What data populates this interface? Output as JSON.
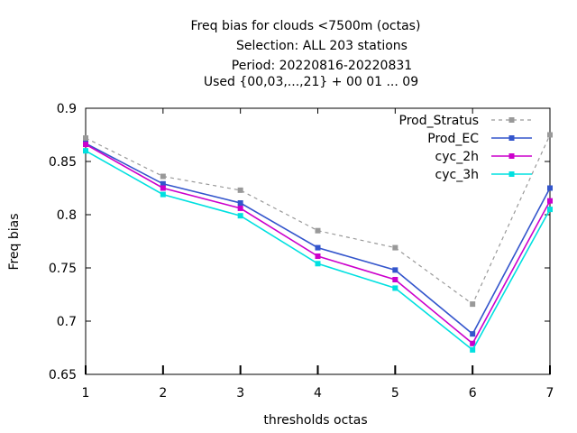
{
  "chart_data": {
    "type": "line",
    "title_lines": [
      "Freq bias  for clouds <7500m (octas)",
      "Selection: ALL    203 stations",
      "Period: 20220816-20220831",
      "Used {00,03,...,21} + 00 01 ... 09"
    ],
    "xlabel": "thresholds octas",
    "ylabel": "Freq bias",
    "x": [
      1,
      2,
      3,
      4,
      5,
      6,
      7
    ],
    "xlim": [
      1,
      7
    ],
    "ylim": [
      0.65,
      0.9
    ],
    "yticks": [
      0.65,
      0.7,
      0.75,
      0.8,
      0.85,
      0.9
    ],
    "ytick_labels": [
      "0.65",
      "0.7",
      "0.75",
      "0.8",
      "0.85",
      "0.9"
    ],
    "xtick_labels": [
      "1",
      "2",
      "3",
      "4",
      "5",
      "6",
      "7"
    ],
    "grid": false,
    "legend_position": "top-right",
    "series": [
      {
        "name": "Prod_Stratus",
        "color": "#999999",
        "dashed": true,
        "values": [
          0.872,
          0.836,
          0.823,
          0.785,
          0.769,
          0.716,
          0.875
        ]
      },
      {
        "name": "Prod_EC",
        "color": "#3355cc",
        "dashed": false,
        "values": [
          0.867,
          0.829,
          0.811,
          0.769,
          0.748,
          0.688,
          0.825
        ]
      },
      {
        "name": "cyc_2h",
        "color": "#cc00cc",
        "dashed": false,
        "values": [
          0.866,
          0.825,
          0.806,
          0.761,
          0.739,
          0.679,
          0.813
        ]
      },
      {
        "name": "cyc_3h",
        "color": "#00e0e0",
        "dashed": false,
        "values": [
          0.86,
          0.819,
          0.799,
          0.754,
          0.731,
          0.673,
          0.805
        ]
      }
    ]
  }
}
